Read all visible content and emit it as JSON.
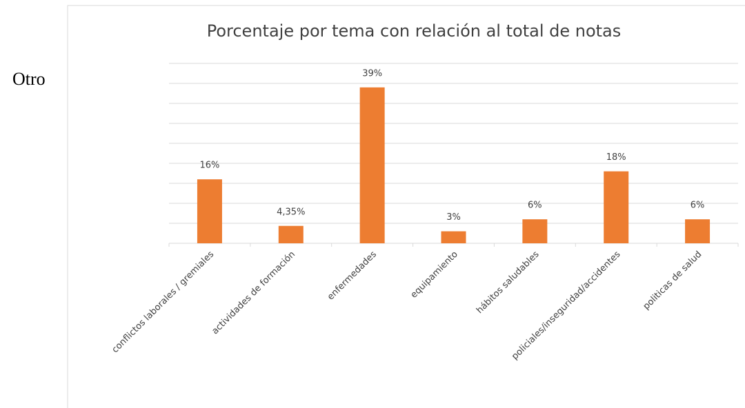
{
  "text": "Otro",
  "chart_data": {
    "type": "bar",
    "title": "Porcentaje por tema con relación al total de notas",
    "categories": [
      "conflictos laborales / gremiales",
      "actividades de formación",
      "enfermedades",
      "equipamiento",
      "hábitos saludables",
      "policiales/inseguridad/accidentes",
      "politicas de salud"
    ],
    "values": [
      16,
      4.35,
      39,
      3,
      6,
      18,
      6
    ],
    "value_labels": [
      "16%",
      "4,35%",
      "39%",
      "3%",
      "6%",
      "18%",
      "6%"
    ],
    "color": "#ed7d31",
    "ylim": [
      0,
      45
    ],
    "yticks": [
      0,
      5,
      10,
      15,
      20,
      25,
      30,
      35,
      40,
      45
    ],
    "grid": true
  }
}
